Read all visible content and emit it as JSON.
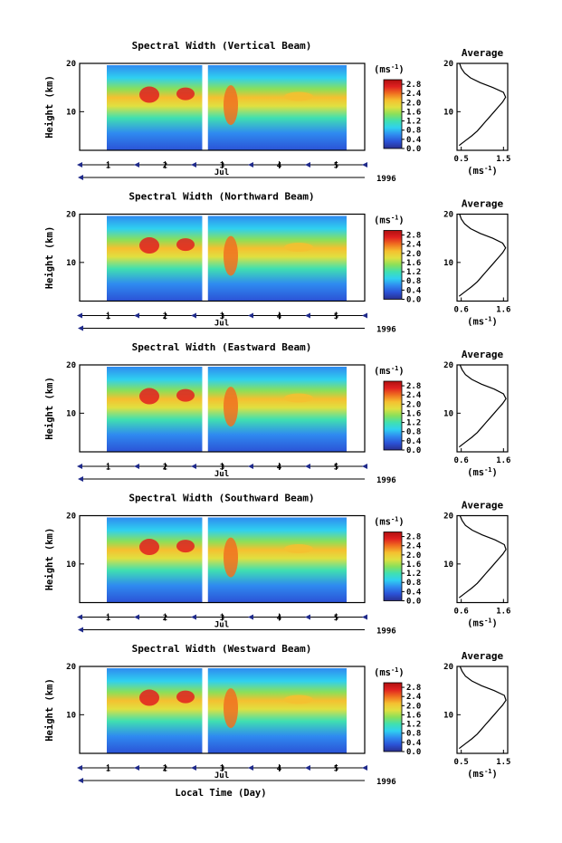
{
  "figure": {
    "xlabel": "Local Time (Day)",
    "month_label": "Jul",
    "year_label": "1996",
    "y_axis_label": "Height (km)",
    "colorbar_unit": "(ms",
    "unit_exp": "-1",
    "profile_title": "Average",
    "profile_unit": "(ms",
    "colors": {
      "stops": [
        "#2a2f8f",
        "#2b52d6",
        "#2f8af0",
        "#2fd0f0",
        "#40e0b0",
        "#8ae05a",
        "#e0e040",
        "#f5c030",
        "#f07020",
        "#e02020",
        "#b01010"
      ],
      "background": "#ffffff",
      "axis": "#000000",
      "day_marker": "#1f2a8a"
    }
  },
  "chart_data": [
    {
      "type": "heatmap",
      "title": "Spectral Width (Vertical Beam)",
      "quantity": "spectral width",
      "ylabel": "Height (km)",
      "xlabel": "",
      "ylim": [
        2,
        20
      ],
      "yticks": [
        "10",
        "20"
      ],
      "xlim": [
        0.5,
        5.5
      ],
      "xticks": [
        "1",
        "2",
        "3",
        "4",
        "5"
      ],
      "data_gap_days": [
        2.65,
        2.75
      ],
      "colorbar": {
        "ticks": [
          "0.0",
          "0.4",
          "0.8",
          "1.2",
          "1.6",
          "2.0",
          "2.4",
          "2.8"
        ],
        "range": [
          0.0,
          3.0
        ]
      },
      "average_profile": {
        "title": "Average",
        "xticks": [
          "0.5",
          "1.5"
        ],
        "xlim": [
          0.4,
          1.6
        ],
        "yticks": [
          "10",
          "20"
        ],
        "ylim": [
          2,
          20
        ],
        "height_km": [
          3,
          4,
          5,
          6,
          7,
          8,
          9,
          10,
          11,
          12,
          13,
          14,
          15,
          16,
          17,
          18,
          19,
          20
        ],
        "width": [
          0.45,
          0.6,
          0.75,
          0.88,
          0.98,
          1.08,
          1.18,
          1.28,
          1.38,
          1.48,
          1.55,
          1.5,
          1.25,
          0.95,
          0.72,
          0.58,
          0.5,
          0.46
        ]
      }
    },
    {
      "type": "heatmap",
      "title": "Spectral Width (Northward Beam)",
      "quantity": "spectral width",
      "ylabel": "Height (km)",
      "xlabel": "",
      "ylim": [
        2,
        20
      ],
      "yticks": [
        "10",
        "20"
      ],
      "xlim": [
        0.5,
        5.5
      ],
      "xticks": [
        "1",
        "2",
        "3",
        "4",
        "5"
      ],
      "data_gap_days": [
        2.65,
        2.75
      ],
      "colorbar": {
        "ticks": [
          "0.0",
          "0.4",
          "0.8",
          "1.2",
          "1.6",
          "2.0",
          "2.4",
          "2.8"
        ],
        "range": [
          0.0,
          3.0
        ]
      },
      "average_profile": {
        "title": "Average",
        "xticks": [
          "0.6",
          "1.6"
        ],
        "xlim": [
          0.5,
          1.7
        ],
        "yticks": [
          "10",
          "20"
        ],
        "ylim": [
          2,
          20
        ],
        "height_km": [
          3,
          4,
          5,
          6,
          7,
          8,
          9,
          10,
          11,
          12,
          13,
          14,
          15,
          16,
          17,
          18,
          19,
          20
        ],
        "width": [
          0.55,
          0.7,
          0.85,
          0.98,
          1.08,
          1.18,
          1.28,
          1.38,
          1.48,
          1.58,
          1.65,
          1.58,
          1.35,
          1.05,
          0.82,
          0.68,
          0.6,
          0.56
        ]
      }
    },
    {
      "type": "heatmap",
      "title": "Spectral Width (Eastward Beam)",
      "quantity": "spectral width",
      "ylabel": "Height (km)",
      "xlabel": "",
      "ylim": [
        2,
        20
      ],
      "yticks": [
        "10",
        "20"
      ],
      "xlim": [
        0.5,
        5.5
      ],
      "xticks": [
        "1",
        "2",
        "3",
        "4",
        "5"
      ],
      "data_gap_days": [
        2.65,
        2.75
      ],
      "colorbar": {
        "ticks": [
          "0.0",
          "0.4",
          "0.8",
          "1.2",
          "1.6",
          "2.0",
          "2.4",
          "2.8"
        ],
        "range": [
          0.0,
          3.0
        ]
      },
      "average_profile": {
        "title": "Average",
        "xticks": [
          "0.6",
          "1.6"
        ],
        "xlim": [
          0.5,
          1.7
        ],
        "yticks": [
          "10",
          "20"
        ],
        "ylim": [
          2,
          20
        ],
        "height_km": [
          3,
          4,
          5,
          6,
          7,
          8,
          9,
          10,
          11,
          12,
          13,
          14,
          15,
          16,
          17,
          18,
          19,
          20
        ],
        "width": [
          0.55,
          0.7,
          0.85,
          0.98,
          1.08,
          1.18,
          1.28,
          1.38,
          1.48,
          1.58,
          1.66,
          1.6,
          1.38,
          1.08,
          0.85,
          0.7,
          0.62,
          0.57
        ]
      }
    },
    {
      "type": "heatmap",
      "title": "Spectral Width (Southward Beam)",
      "quantity": "spectral width",
      "ylabel": "Height (km)",
      "xlabel": "",
      "ylim": [
        2,
        20
      ],
      "yticks": [
        "10",
        "20"
      ],
      "xlim": [
        0.5,
        5.5
      ],
      "xticks": [
        "1",
        "2",
        "3",
        "4",
        "5"
      ],
      "data_gap_days": [
        2.65,
        2.75
      ],
      "colorbar": {
        "ticks": [
          "0.0",
          "0.4",
          "0.8",
          "1.2",
          "1.6",
          "2.0",
          "2.4",
          "2.8"
        ],
        "range": [
          0.0,
          3.0
        ]
      },
      "average_profile": {
        "title": "Average",
        "xticks": [
          "0.6",
          "1.6"
        ],
        "xlim": [
          0.5,
          1.7
        ],
        "yticks": [
          "10",
          "20"
        ],
        "ylim": [
          2,
          20
        ],
        "height_km": [
          3,
          4,
          5,
          6,
          7,
          8,
          9,
          10,
          11,
          12,
          13,
          14,
          15,
          16,
          17,
          18,
          19,
          20
        ],
        "width": [
          0.55,
          0.7,
          0.85,
          0.98,
          1.08,
          1.18,
          1.28,
          1.38,
          1.48,
          1.58,
          1.66,
          1.62,
          1.4,
          1.1,
          0.86,
          0.7,
          0.62,
          0.57
        ]
      }
    },
    {
      "type": "heatmap",
      "title": "Spectral Width (Westward Beam)",
      "quantity": "spectral width",
      "ylabel": "Height (km)",
      "xlabel": "Local Time (Day)",
      "ylim": [
        2,
        20
      ],
      "yticks": [
        "10",
        "20"
      ],
      "xlim": [
        0.5,
        5.5
      ],
      "xticks": [
        "1",
        "2",
        "3",
        "4",
        "5"
      ],
      "data_gap_days": [
        2.65,
        2.75
      ],
      "colorbar": {
        "ticks": [
          "0.0",
          "0.4",
          "0.8",
          "1.2",
          "1.6",
          "2.0",
          "2.4",
          "2.8"
        ],
        "range": [
          0.0,
          3.0
        ]
      },
      "average_profile": {
        "title": "Average",
        "xticks": [
          "0.5",
          "1.5"
        ],
        "xlim": [
          0.4,
          1.6
        ],
        "yticks": [
          "10",
          "20"
        ],
        "ylim": [
          2,
          20
        ],
        "height_km": [
          3,
          4,
          5,
          6,
          7,
          8,
          9,
          10,
          11,
          12,
          13,
          14,
          15,
          16,
          17,
          18,
          19,
          20
        ],
        "width": [
          0.45,
          0.6,
          0.75,
          0.88,
          0.98,
          1.08,
          1.18,
          1.28,
          1.38,
          1.48,
          1.56,
          1.52,
          1.28,
          0.98,
          0.75,
          0.6,
          0.52,
          0.47
        ]
      }
    }
  ]
}
